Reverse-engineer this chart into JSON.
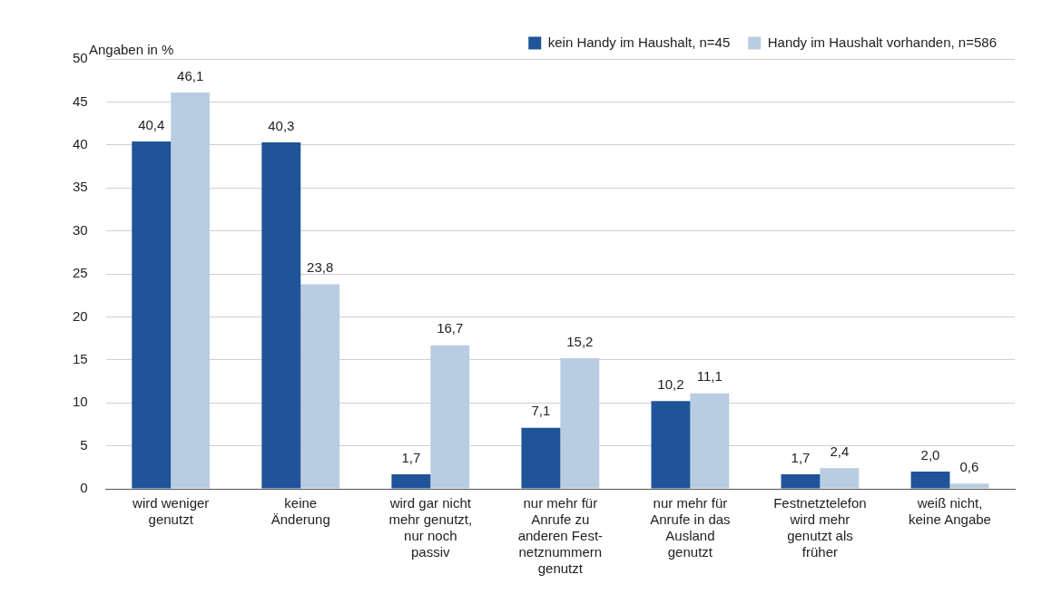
{
  "chart_data": {
    "type": "bar",
    "ylabel": "Angaben in %",
    "categories": [
      "wird weniger\ngenutzt",
      "keine\nÄnderung",
      "wird gar nicht\nmehr genutzt,\nnur noch\npassiv",
      "nur mehr für\nAnrufe zu\nanderen Fest-\nnetznummern\ngenutzt",
      "nur mehr für\nAnrufe in das\nAusland\ngenutzt",
      "Festnetztelefon\nwird mehr\ngenutzt als\nfrüher",
      "weiß nicht,\nkeine Angabe"
    ],
    "series": [
      {
        "name": "kein Handy im Haushalt, n=45",
        "color": "#1f5499",
        "values": [
          40.4,
          40.3,
          1.7,
          7.1,
          10.2,
          1.7,
          2.0
        ],
        "value_labels": [
          "40,4",
          "40,3",
          "1,7",
          "7,1",
          "10,2",
          "1,7",
          "2,0"
        ]
      },
      {
        "name": "Handy im Haushalt vorhanden, n=586",
        "color": "#b9cde2",
        "values": [
          46.1,
          23.8,
          16.7,
          15.2,
          11.1,
          2.4,
          0.6
        ],
        "value_labels": [
          "46,1",
          "23,8",
          "16,7",
          "15,2",
          "11,1",
          "2,4",
          "0,6"
        ]
      }
    ],
    "ylim": [
      0,
      50
    ],
    "yticks": [
      0,
      5,
      10,
      15,
      20,
      25,
      30,
      35,
      40,
      45,
      50
    ],
    "grid": "y",
    "legend": "top right"
  }
}
